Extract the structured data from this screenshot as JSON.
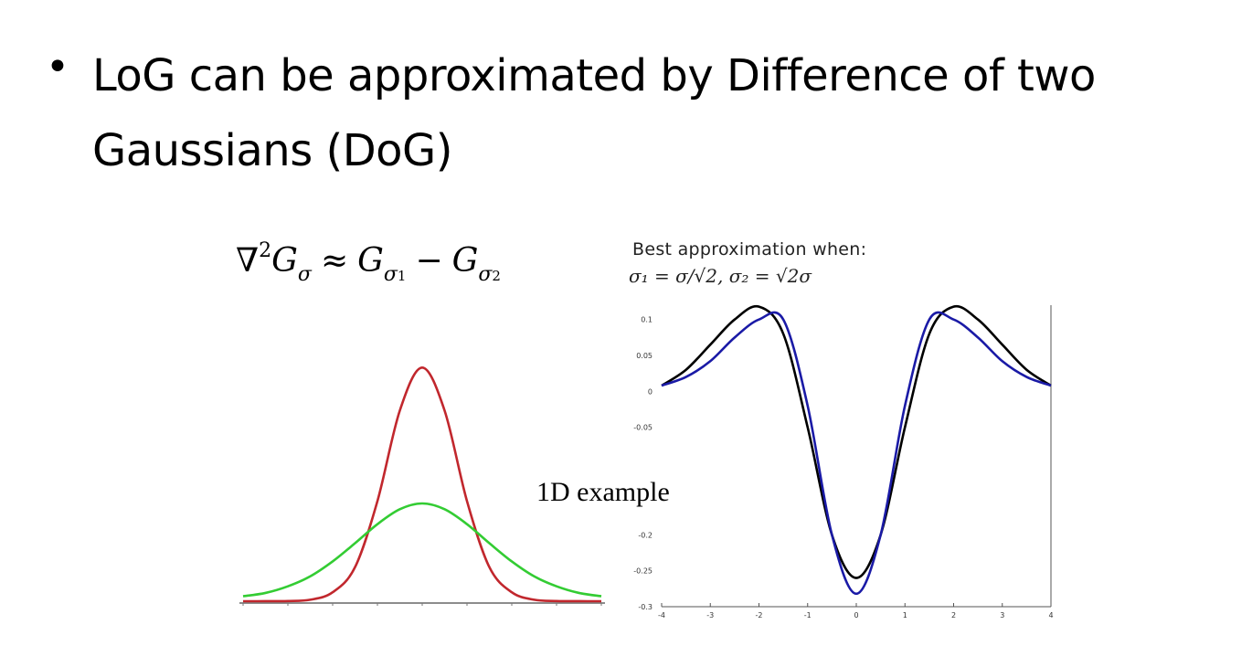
{
  "slide": {
    "bullet": "•",
    "title_lines": [
      "LoG can be approximated by Difference of two",
      "Gaussians (DoG)"
    ],
    "formula": {
      "lhs_symbol": "∇",
      "lhs_power": "2",
      "lhs_G": "G",
      "lhs_sub": "σ",
      "approx": "≈",
      "g1": "G",
      "g1_sub": "σ",
      "g1_sub2": "1",
      "minus": "−",
      "g2": "G",
      "g2_sub": "σ",
      "g2_sub2": "2"
    },
    "note_title": "Best approximation when:",
    "note_eq": "σ₁ = σ/√2,  σ₂ = √2σ",
    "caption": "1D example"
  },
  "chart_data": [
    {
      "type": "line",
      "title": "",
      "series": [
        {
          "color": "#c1272d",
          "x": [
            -4,
            -3.5,
            -3,
            -2.5,
            -2,
            -1.5,
            -1,
            -0.5,
            0,
            0.5,
            1,
            1.5,
            2,
            2.5,
            3,
            3.5,
            4
          ],
          "values": [
            0,
            0.0002,
            0.0022,
            0.0175,
            0.1079,
            0.4111,
            1.2085,
            2.3012,
            2.82,
            2.3012,
            1.2085,
            0.4111,
            0.1079,
            0.0175,
            0.0022,
            0.0002,
            0
          ]
        },
        {
          "color": "#33cc33",
          "x": [
            -4,
            -3.5,
            -3,
            -2.5,
            -2,
            -1.5,
            -1,
            -0.5,
            0,
            0.5,
            1,
            1.5,
            2,
            2.5,
            3,
            3.5,
            4
          ],
          "values": [
            0.06,
            0.1,
            0.18,
            0.3,
            0.48,
            0.7,
            0.93,
            1.11,
            1.18,
            1.11,
            0.93,
            0.7,
            0.48,
            0.3,
            0.18,
            0.1,
            0.06
          ]
        }
      ],
      "xlim": [
        -4,
        4
      ],
      "ylim": [
        0,
        3
      ],
      "grid": false
    },
    {
      "type": "line",
      "title": "",
      "xticks": [
        "-4",
        "-3",
        "-2",
        "-1",
        "0",
        "1",
        "2",
        "3",
        "4"
      ],
      "yticks": [
        "0.1",
        "0.05",
        "0",
        "-0.05",
        "-0.2",
        "-0.25",
        "-0.3"
      ],
      "series": [
        {
          "color": "#000000",
          "x": [
            -4,
            -3.5,
            -3,
            -2.5,
            -2,
            -1.5,
            -1,
            -0.5,
            0,
            0.5,
            1,
            1.5,
            2,
            2.5,
            3,
            3.5,
            4
          ],
          "values": [
            0.008,
            0.03,
            0.065,
            0.1,
            0.118,
            0.08,
            -0.05,
            -0.2,
            -0.26,
            -0.2,
            -0.05,
            0.08,
            0.118,
            0.1,
            0.065,
            0.03,
            0.008
          ]
        },
        {
          "color": "#1a1aa6",
          "x": [
            -4,
            -3.5,
            -3,
            -2.5,
            -2,
            -1.5,
            -1,
            -0.5,
            0,
            0.5,
            1,
            1.5,
            2,
            2.5,
            3,
            3.5,
            4
          ],
          "values": [
            0.008,
            0.02,
            0.042,
            0.075,
            0.1,
            0.1,
            -0.02,
            -0.2,
            -0.282,
            -0.2,
            -0.02,
            0.1,
            0.1,
            0.075,
            0.042,
            0.02,
            0.008
          ]
        }
      ],
      "xlim": [
        -4,
        4
      ],
      "ylim": [
        -0.3,
        0.12
      ],
      "grid": false
    }
  ]
}
